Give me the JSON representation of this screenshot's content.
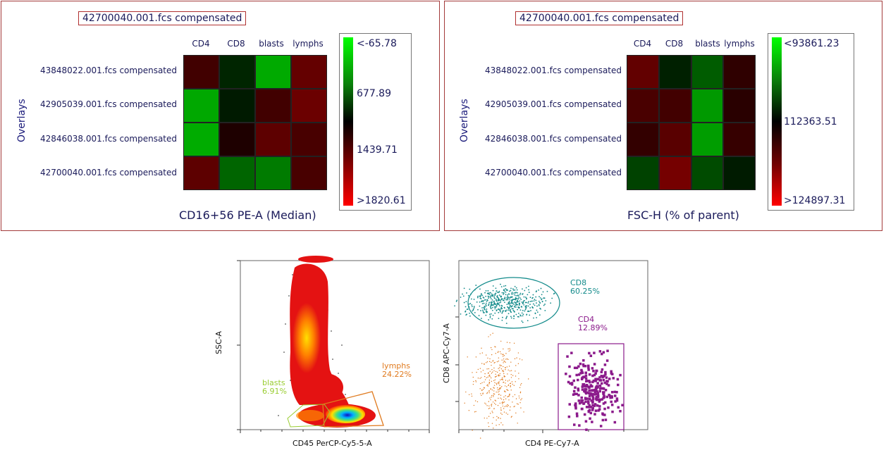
{
  "chart_data": [
    {
      "type": "heatmap",
      "title": "42700040.001.fcs compensated",
      "metric": "CD16+56 PE-A (Median)",
      "y_axis_label": "Overlays",
      "columns": [
        "CD4",
        "CD8",
        "blasts",
        "lymphs"
      ],
      "rows": [
        "43848022.001.fcs compensated",
        "42905039.001.fcs compensated",
        "42846038.001.fcs compensated",
        "42700040.001.fcs compensated"
      ],
      "values": [
        [
          1000,
          600,
          -20,
          1250
        ],
        [
          -10,
          650,
          1000,
          1300
        ],
        [
          -30,
          750,
          1200,
          1050
        ],
        [
          1200,
          300,
          200,
          1050
        ]
      ],
      "scale": {
        "min_label": "<-65.78",
        "mid_label": "677.89",
        "low_mid_label": "1439.71",
        "max_label": ">1820.61",
        "min": -65.78,
        "mid": 677.89,
        "max": 1820.61
      }
    },
    {
      "type": "heatmap",
      "title": "42700040.001.fcs compensated",
      "metric": "FSC-H (% of parent)",
      "y_axis_label": "Overlays",
      "columns": [
        "CD4",
        "CD8",
        "blasts",
        "lymphs"
      ],
      "rows": [
        "43848022.001.fcs compensated",
        "42905039.001.fcs compensated",
        "42846038.001.fcs compensated",
        "42700040.001.fcs compensated"
      ],
      "values": [
        [
          118500,
          111000,
          104000,
          114500
        ],
        [
          116500,
          116000,
          97000,
          114000
        ],
        [
          114800,
          117800,
          96500,
          115000
        ],
        [
          107000,
          120000,
          106000,
          111500
        ]
      ],
      "scale": {
        "min_label": "<93861.23",
        "mid_label": "112363.51",
        "max_label": ">124897.31",
        "min": 93861.23,
        "mid": 112363.51,
        "max": 124897.31
      }
    },
    {
      "type": "scatter",
      "subtype": "density",
      "xlabel": "CD45 PerCP-Cy5-5-A",
      "ylabel": "SSC-A",
      "gates": [
        {
          "name": "blasts",
          "percent": "6.91%",
          "color": "#9acd32"
        },
        {
          "name": "lymphs",
          "percent": "24.22%",
          "color": "#e07a1e"
        }
      ]
    },
    {
      "type": "scatter",
      "subtype": "dot",
      "xlabel": "CD4 PE-Cy7-A",
      "ylabel": "CD8 APC-Cy7-A",
      "gates": [
        {
          "name": "CD8",
          "percent": "60.25%",
          "color": "#138b8b"
        },
        {
          "name": "CD4",
          "percent": "12.89%",
          "color": "#8b1a8b"
        }
      ]
    }
  ]
}
